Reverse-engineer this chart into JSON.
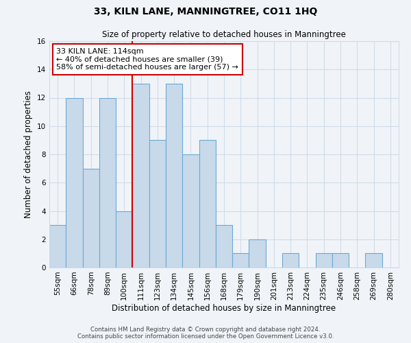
{
  "title": "33, KILN LANE, MANNINGTREE, CO11 1HQ",
  "subtitle": "Size of property relative to detached houses in Manningtree",
  "xlabel": "Distribution of detached houses by size in Manningtree",
  "ylabel": "Number of detached properties",
  "bin_labels": [
    "55sqm",
    "66sqm",
    "78sqm",
    "89sqm",
    "100sqm",
    "111sqm",
    "123sqm",
    "134sqm",
    "145sqm",
    "156sqm",
    "168sqm",
    "179sqm",
    "190sqm",
    "201sqm",
    "213sqm",
    "224sqm",
    "235sqm",
    "246sqm",
    "258sqm",
    "269sqm",
    "280sqm"
  ],
  "bar_heights": [
    3,
    12,
    7,
    12,
    4,
    13,
    9,
    13,
    8,
    9,
    3,
    1,
    2,
    0,
    1,
    0,
    1,
    1,
    0,
    1,
    0
  ],
  "bar_color": "#c8d9ea",
  "bar_edge_color": "#6aaad4",
  "highlight_bar_index": 5,
  "highlight_line_color": "#cc0000",
  "annotation_text": "33 KILN LANE: 114sqm\n← 40% of detached houses are smaller (39)\n58% of semi-detached houses are larger (57) →",
  "annotation_box_edge_color": "#cc0000",
  "ylim": [
    0,
    16
  ],
  "yticks": [
    0,
    2,
    4,
    6,
    8,
    10,
    12,
    14,
    16
  ],
  "footer_line1": "Contains HM Land Registry data © Crown copyright and database right 2024.",
  "footer_line2": "Contains public sector information licensed under the Open Government Licence v3.0.",
  "background_color": "#f0f4f8",
  "plot_bg_color": "#f0f4f8",
  "grid_color": "#d0dce8",
  "title_fontsize": 10,
  "subtitle_fontsize": 8.5,
  "annotation_fontsize": 8,
  "tick_fontsize": 7.5,
  "axis_label_fontsize": 8.5
}
